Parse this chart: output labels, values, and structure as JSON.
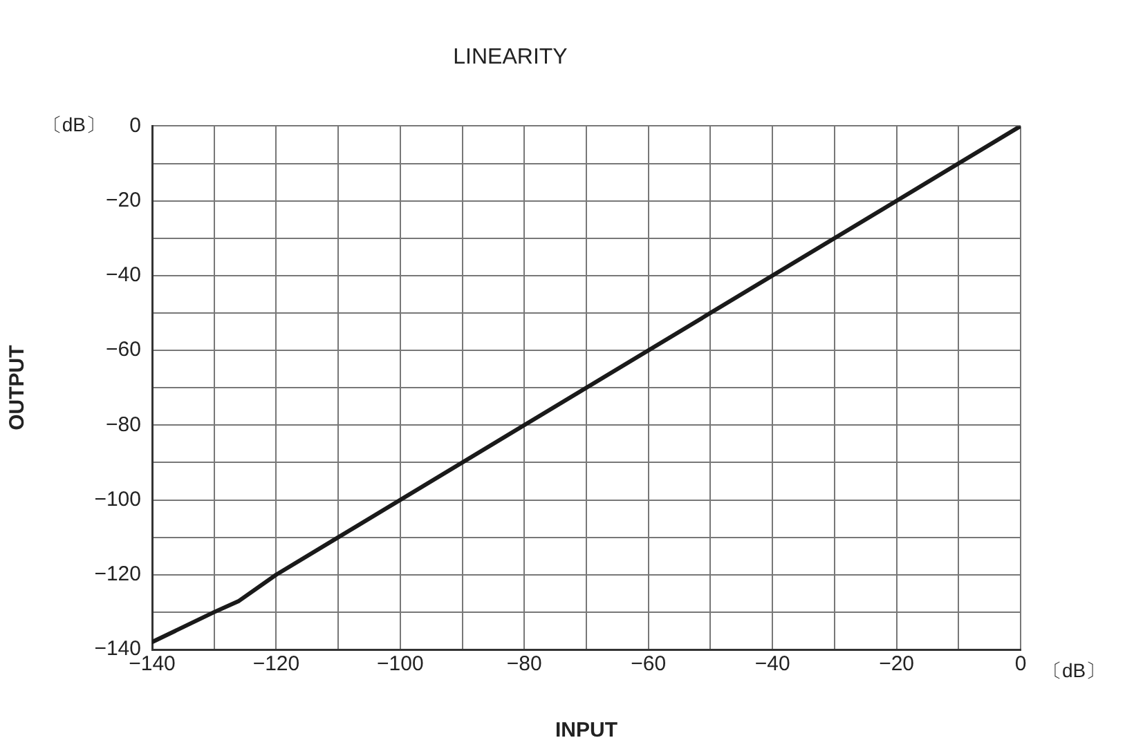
{
  "chart_data": {
    "type": "line",
    "title": "LINEARITY",
    "xlabel": "INPUT",
    "ylabel": "OUTPUT",
    "annotations": [
      "〔dB〕",
      "〔dB〕"
    ],
    "series": [
      {
        "color": "#1a1a1a",
        "x": [
          -140,
          -130,
          -126,
          -120,
          -110,
          0
        ],
        "values": [
          -138,
          -130,
          -127,
          -120,
          -110,
          0
        ]
      }
    ],
    "xlim": [
      -140,
      0
    ],
    "xticks": [
      -140,
      {
        "value": -130,
        "label": null
      },
      -120,
      {
        "value": -110,
        "label": null
      },
      -100,
      {
        "value": -90,
        "label": null
      },
      -80,
      {
        "value": -70,
        "label": null
      },
      -60,
      {
        "value": -50,
        "label": null
      },
      -40,
      {
        "value": -30,
        "label": null
      },
      -20,
      {
        "value": -10,
        "label": null
      },
      0
    ],
    "ylim": [
      -140,
      0
    ],
    "yticks": [
      -140,
      {
        "value": -130,
        "label": null
      },
      -120,
      {
        "value": -110,
        "label": null
      },
      -100,
      {
        "value": -90,
        "label": null
      },
      -80,
      {
        "value": -70,
        "label": null
      },
      -60,
      {
        "value": -50,
        "label": null
      },
      -40,
      {
        "value": -30,
        "label": null
      },
      -20,
      {
        "value": -10,
        "label": null
      },
      0
    ],
    "grid": true,
    "legend": false,
    "marker": "none",
    "line_style": "solid"
  }
}
